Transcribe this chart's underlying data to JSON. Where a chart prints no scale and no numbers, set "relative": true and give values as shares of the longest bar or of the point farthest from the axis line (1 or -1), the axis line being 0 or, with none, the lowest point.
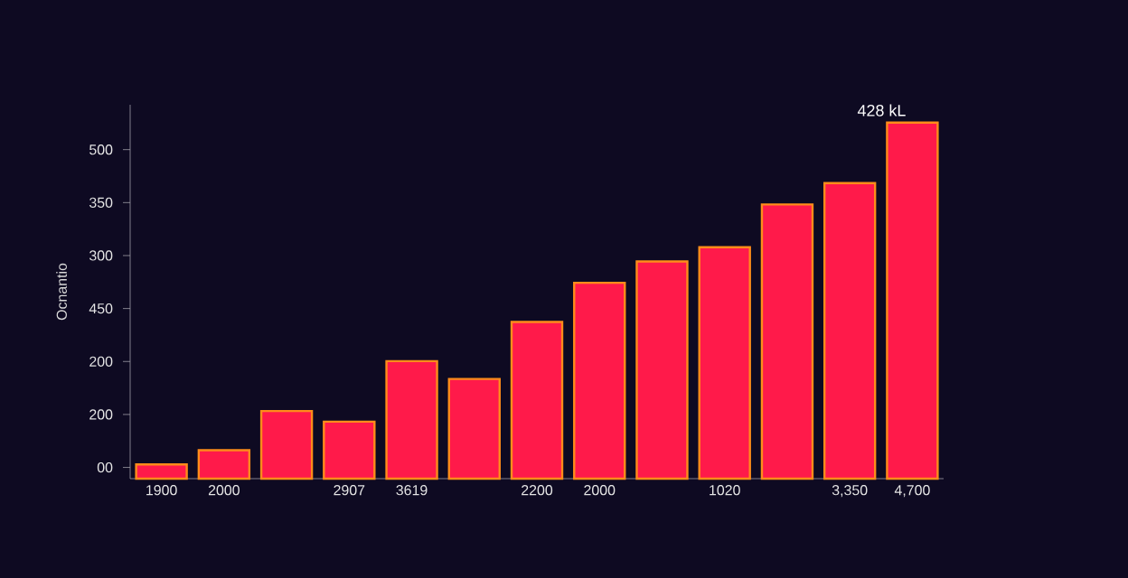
{
  "chart_data": {
    "type": "bar",
    "relative": true,
    "ylabel": "Ocnantio",
    "categories": [
      "1900",
      "2000",
      null,
      "2907",
      "3619",
      null,
      "2200",
      "2000",
      null,
      "1020",
      null,
      "3,350",
      "4,700"
    ],
    "values": [
      0.04,
      0.08,
      0.19,
      0.16,
      0.33,
      0.28,
      0.44,
      0.55,
      0.61,
      0.65,
      0.77,
      0.83,
      1.0
    ],
    "color": "#ff1a4a",
    "annotations": [
      "00",
      "200",
      "200",
      "450",
      "300",
      "350",
      "500",
      {
        "text": "428 kL",
        "x": "4,700",
        "y": 1.0
      }
    ]
  }
}
